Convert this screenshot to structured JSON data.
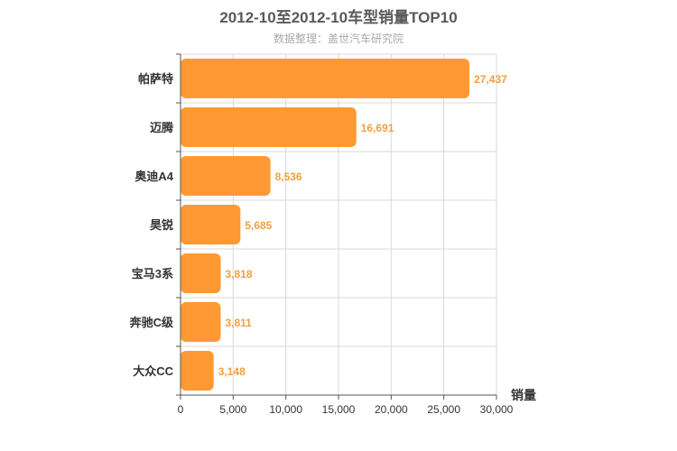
{
  "chart_data": {
    "type": "bar",
    "orientation": "horizontal",
    "title": "2012-10至2012-10车型销量TOP10",
    "subtitle": "数据整理：盖世汽车研究院",
    "xlabel": "销量",
    "ylabel": "",
    "categories": [
      "帕萨特",
      "迈腾",
      "奥迪A4",
      "昊锐",
      "宝马3系",
      "奔驰C级",
      "大众CC"
    ],
    "values": [
      27437,
      16691,
      8536,
      5685,
      3818,
      3811,
      3148
    ],
    "value_labels": [
      "27,437",
      "16,691",
      "8,536",
      "5,685",
      "3,818",
      "3,811",
      "3,148"
    ],
    "xlim": [
      0,
      30000
    ],
    "ticks": [
      0,
      5000,
      10000,
      15000,
      20000,
      25000,
      30000
    ],
    "tick_labels": [
      "0",
      "5,000",
      "10,000",
      "15,000",
      "20,000",
      "25,000",
      "30,000"
    ],
    "grid": true,
    "bar_color": "#ff9933"
  }
}
